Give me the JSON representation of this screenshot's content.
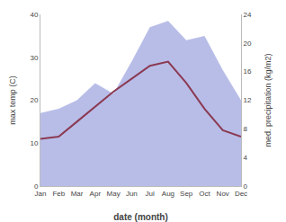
{
  "chart_data": {
    "type": "line",
    "xlabel": "date (month)",
    "ylabel": "max temp (C)",
    "y2label": "med. precipitation (kg/m2)",
    "categories": [
      "Jan",
      "Feb",
      "Mar",
      "Apr",
      "May",
      "Jun",
      "Jul",
      "Aug",
      "Sep",
      "Oct",
      "Nov",
      "Dec"
    ],
    "series": [
      {
        "type": "area",
        "color": "#b8bde8",
        "values": [
          17,
          18,
          20,
          24,
          21.5,
          29,
          37,
          38.5,
          34,
          35,
          27,
          20
        ]
      },
      {
        "type": "line",
        "color": "#8B3A52",
        "values": [
          11,
          11.5,
          15,
          18.5,
          22,
          25,
          28,
          29,
          24,
          18,
          13,
          11.5
        ]
      }
    ],
    "ylim": [
      0,
      40
    ],
    "yticks": [
      0,
      10,
      20,
      30,
      40
    ],
    "y2lim": [
      0,
      24
    ],
    "y2ticks": [
      0,
      4,
      8,
      12,
      16,
      20,
      24
    ],
    "grid": false
  }
}
